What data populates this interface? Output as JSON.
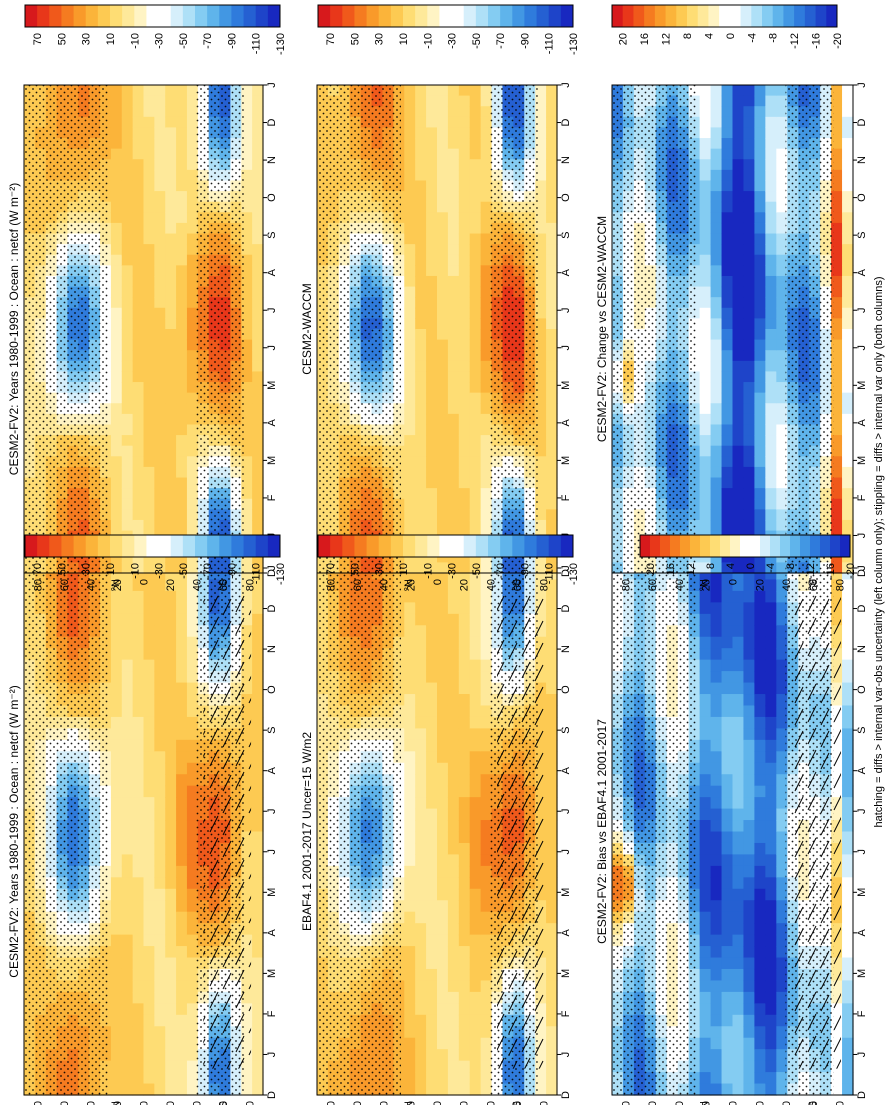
{
  "figure": {
    "footnote": "hatching = diffs > internal var-obs uncertainty (left column only); stippling = diffs > internal var only (both columns)"
  },
  "palettes": {
    "abs": [
      "#d7191c",
      "#e8371a",
      "#f0591b",
      "#f57b20",
      "#f99a2a",
      "#fbb43a",
      "#fdca52",
      "#fedd74",
      "#fee99a",
      "#fff4c4",
      "#ffffff",
      "#ffffff",
      "#d6effb",
      "#aee0f7",
      "#84ccf2",
      "#5fb4eb",
      "#4297e3",
      "#2f7bdc",
      "#2560d2",
      "#1e44c9",
      "#1828c0"
    ],
    "diff": [
      "#d7191c",
      "#e8371a",
      "#f0591b",
      "#f57b20",
      "#f99a2a",
      "#fbb43a",
      "#fdca52",
      "#fedd74",
      "#fee99a",
      "#fff4c4",
      "#ffffff",
      "#ffffff",
      "#d6effb",
      "#aee0f7",
      "#84ccf2",
      "#5fb4eb",
      "#4297e3",
      "#2f7bdc",
      "#2560d2",
      "#1e44c9",
      "#1828c0"
    ]
  },
  "colorbars": {
    "abs_ticks": [
      "70",
      "50",
      "30",
      "10",
      "-10",
      "-30",
      "-50",
      "-70",
      "-90",
      "-110",
      "-130"
    ],
    "diff_ticks": [
      "20",
      "16",
      "12",
      "8",
      "4",
      "0",
      "-4",
      "-8",
      "-12",
      "-16",
      "-20"
    ]
  },
  "axes": {
    "months": [
      "D",
      "J",
      "F",
      "M",
      "A",
      "M",
      "J",
      "J",
      "A",
      "S",
      "O",
      "N",
      "D",
      "J"
    ],
    "lat_ticks": [
      "80",
      "60",
      "40",
      "20",
      "0",
      "20",
      "40",
      "60",
      "80"
    ],
    "lat_unit_n": "°N",
    "lat_unit_s": "°S"
  },
  "chart_data": [
    {
      "type": "heatmap",
      "id": "p1",
      "title": "CESM2-FV2: Years 1980-1999 : Ocean : netcf (W m⁻²)",
      "x": "month (D..J)",
      "y": "latitude 90N..90S",
      "zlim": [
        -130,
        70
      ],
      "units": "W m-2",
      "hatching": true,
      "stippling": true
    },
    {
      "type": "heatmap",
      "id": "p2",
      "title": "EBAF4.1 2001-2017 Uncer=15 W/m2",
      "x": "month (D..J)",
      "y": "latitude 90N..90S",
      "zlim": [
        -130,
        70
      ],
      "units": "W m-2",
      "hatching": true,
      "stippling": true
    },
    {
      "type": "heatmap",
      "id": "p3",
      "title": "CESM2-FV2: Bias vs EBAF4.1 2001-2017",
      "x": "month (D..J)",
      "y": "latitude 90N..90S",
      "zlim": [
        -20,
        20
      ],
      "units": "W m-2",
      "hatching": true,
      "stippling": true
    },
    {
      "type": "heatmap",
      "id": "p4",
      "title": "CESM2-FV2: Years 1980-1999 : Ocean : netcf (W m⁻²)",
      "x": "month (D..J)",
      "y": "latitude 90N..90S",
      "zlim": [
        -130,
        70
      ],
      "units": "W m-2",
      "hatching": false,
      "stippling": true
    },
    {
      "type": "heatmap",
      "id": "p5",
      "title": "CESM2-WACCM",
      "x": "month (D..J)",
      "y": "latitude 90N..90S",
      "zlim": [
        -130,
        70
      ],
      "units": "W m-2",
      "hatching": false,
      "stippling": true
    },
    {
      "type": "heatmap",
      "id": "p6",
      "title": "CESM2-FV2: Change vs CESM2-WACCM",
      "x": "month (D..J)",
      "y": "latitude 90N..90S",
      "zlim": [
        -20,
        20
      ],
      "units": "W m-2",
      "hatching": false,
      "stippling": true
    }
  ]
}
